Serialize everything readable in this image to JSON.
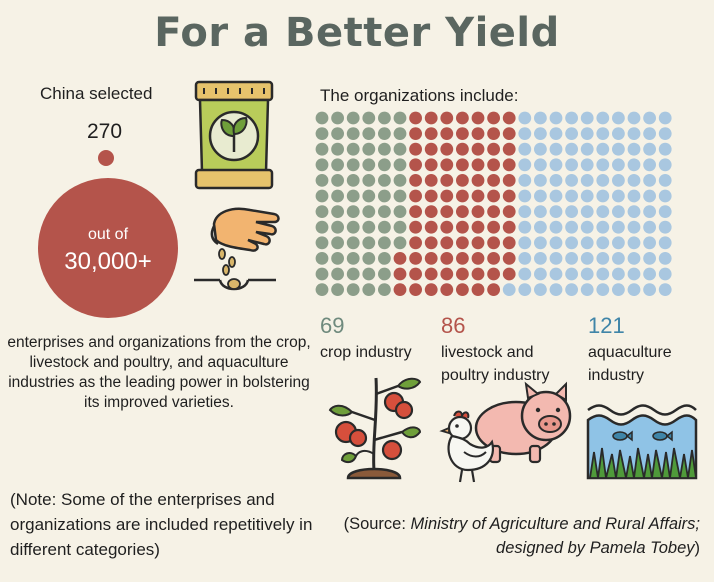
{
  "title": "For a Better Yield",
  "left": {
    "china_selected": "China selected",
    "selected_count": "270",
    "out_of": "out of",
    "total": "30,000+",
    "description": "enterprises and organizations from the crop, livestock and poultry, and aquaculture industries as the leading power in bolstering its improved varieties.",
    "note": "(Note: Some of the enterprises and organizations are included repetitively in different categories)"
  },
  "right": {
    "organizations_title": "The organizations include:"
  },
  "source_prefix": "(Source: ",
  "source_text": "Ministry of Agriculture and Rural Affairs; designed by Pamela Tobey",
  "source_suffix": ")",
  "colors": {
    "crop": "#8c9e8a",
    "livestock": "#b4544b",
    "aquaculture": "#a9c7e0",
    "title": "#5a6660"
  },
  "icons": [
    "seed-bag-icon",
    "hand-sowing-icon",
    "tomato-plant-icon",
    "pig-icon",
    "chicken-icon",
    "fish-water-icon"
  ],
  "chart_data": {
    "type": "bar",
    "categories": [
      "crop industry",
      "livestock and poultry  industry",
      "aquaculture industry"
    ],
    "values": [
      69,
      86,
      121
    ],
    "value_labels": [
      "69",
      "86",
      "121"
    ],
    "colors": [
      "#8c9e8a",
      "#b4544b",
      "#a9c7e0"
    ],
    "label_colors": [
      "#6f8a7d",
      "#b4544b",
      "#3f85a8"
    ],
    "dots_per_column": 12
  }
}
